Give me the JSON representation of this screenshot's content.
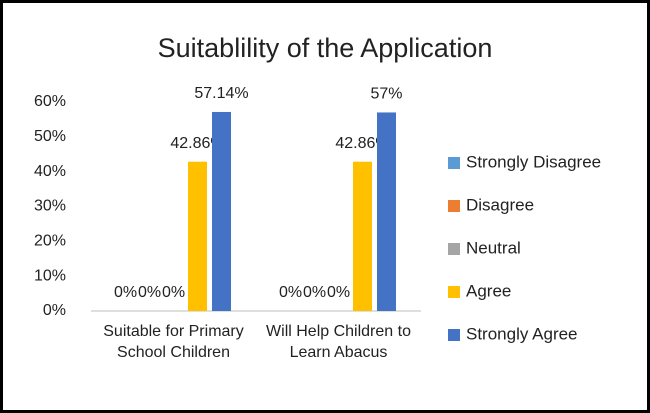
{
  "chart_data": {
    "type": "bar",
    "title": "Suitablility of the Application",
    "categories": [
      "Suitable for Primary School Children",
      "Will Help Children to Learn Abacus"
    ],
    "series": [
      {
        "name": "Strongly Disagree",
        "color": "#5b9bd5",
        "values": [
          0,
          0
        ],
        "value_labels": [
          "0%",
          "0%"
        ]
      },
      {
        "name": "Disagree",
        "color": "#ed7d31",
        "values": [
          0,
          0
        ],
        "value_labels": [
          "0%",
          "0%"
        ]
      },
      {
        "name": "Neutral",
        "color": "#a5a5a5",
        "values": [
          0,
          0
        ],
        "value_labels": [
          "0%",
          "0%"
        ]
      },
      {
        "name": "Agree",
        "color": "#ffc000",
        "values": [
          42.86,
          42.86
        ],
        "value_labels": [
          "42.86%",
          "42.86%"
        ]
      },
      {
        "name": "Strongly Agree",
        "color": "#4472c4",
        "values": [
          57.14,
          57
        ],
        "value_labels": [
          "57.14%",
          "57%"
        ]
      }
    ],
    "ylim": [
      0,
      60
    ],
    "yticks": [
      {
        "value": 0,
        "label": "0%"
      },
      {
        "value": 10,
        "label": "10%"
      },
      {
        "value": 20,
        "label": "20%"
      },
      {
        "value": 30,
        "label": "30%"
      },
      {
        "value": 40,
        "label": "40%"
      },
      {
        "value": 50,
        "label": "50%"
      },
      {
        "value": 60,
        "label": "60%"
      }
    ],
    "grid": false,
    "legend": "right"
  }
}
